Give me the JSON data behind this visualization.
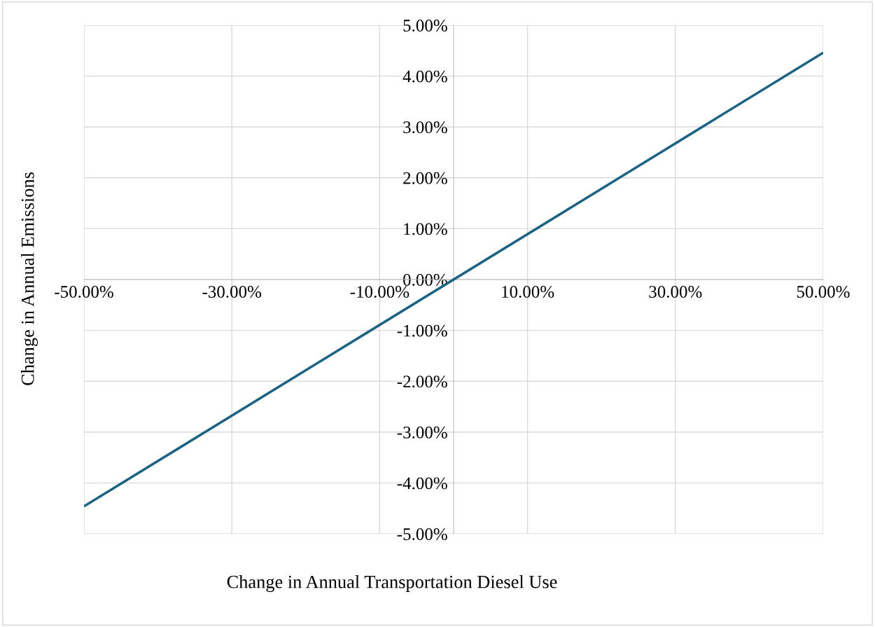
{
  "chart_data": {
    "type": "line",
    "xlabel": "Change in Annual Transportation Diesel Use",
    "ylabel": "Change in Annual Emissions",
    "x": [
      -50,
      50
    ],
    "series": [
      {
        "color": "#1b6283",
        "values": [
          -4.46,
          4.46
        ]
      }
    ],
    "xlim": [
      -50,
      50
    ],
    "xticks": [
      {
        "value": -50,
        "label": "-50.00%"
      },
      {
        "value": -30,
        "label": "-30.00%"
      },
      {
        "value": -10,
        "label": "-10.00%"
      },
      {
        "value": 10,
        "label": "10.00%"
      },
      {
        "value": 30,
        "label": "30.00%"
      },
      {
        "value": 50,
        "label": "50.00%"
      }
    ],
    "ylim": [
      -5,
      5
    ],
    "yticks": [
      {
        "value": -5,
        "label": "-5.00%"
      },
      {
        "value": -4,
        "label": "-4.00%"
      },
      {
        "value": -3,
        "label": "-3.00%"
      },
      {
        "value": -2,
        "label": "-2.00%"
      },
      {
        "value": -1,
        "label": "-1.00%"
      },
      {
        "value": 0,
        "label": "0.00%"
      },
      {
        "value": 1,
        "label": "1.00%"
      },
      {
        "value": 2,
        "label": "2.00%"
      },
      {
        "value": 3,
        "label": "3.00%"
      },
      {
        "value": 4,
        "label": "4.00%"
      },
      {
        "value": 5,
        "label": "5.00%"
      }
    ],
    "grid": true,
    "legend": false,
    "marker": "none",
    "line_style": "solid"
  }
}
